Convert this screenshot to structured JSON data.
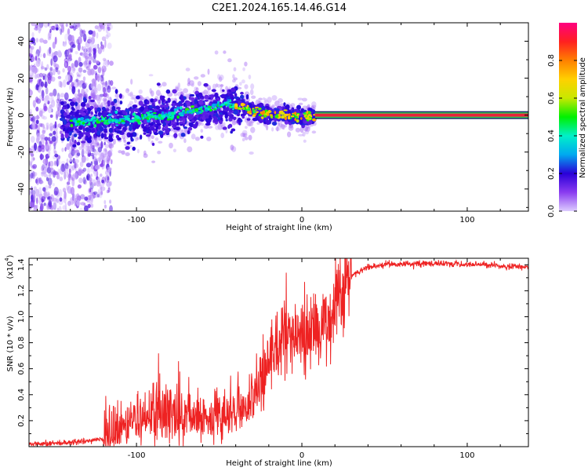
{
  "title": "C2E1.2024.165.14.46.G14",
  "colors": {
    "snr_line": "#ee2222",
    "spectrogram_track": "#e8233a",
    "colormap": [
      "#ddccff",
      "#8a3cf0",
      "#2a00d8",
      "#00a8f0",
      "#00f0c8",
      "#00f000",
      "#c8e800",
      "#ffd000",
      "#ff8000",
      "#ff2020",
      "#ff0080"
    ]
  },
  "chart_data": [
    {
      "type": "heatmap",
      "name": "spectrogram",
      "xlabel": "Height of straight line (km)",
      "ylabel": "Frequency (Hz)",
      "xlim": [
        -165,
        137
      ],
      "ylim": [
        -52,
        50
      ],
      "xticks": [
        -100,
        0,
        100
      ],
      "yticks": [
        -40,
        -20,
        0,
        20,
        40
      ],
      "grid": false,
      "colorbar": {
        "label": "Normalized spectral amplitude",
        "range": [
          0,
          1
        ],
        "ticks": [
          "0.0",
          "0.2",
          "0.4",
          "0.6",
          "0.8"
        ]
      },
      "ridge": {
        "description_points": [
          [
            -145,
            -4
          ],
          [
            -120,
            -3
          ],
          [
            -100,
            -2
          ],
          [
            -80,
            0
          ],
          [
            -60,
            3
          ],
          [
            -45,
            6
          ],
          [
            -35,
            4
          ],
          [
            -25,
            1
          ],
          [
            -10,
            0
          ],
          [
            0,
            -1
          ],
          [
            8,
            -1
          ]
        ],
        "steady_tone_from": 8,
        "steady_tone_freq": 0
      }
    },
    {
      "type": "line",
      "name": "snr",
      "xlabel": "Height of straight line (km)",
      "ylabel": "SNR (10 * v/v)",
      "y_exponent_label": "(x10",
      "y_exponent_power": "4",
      "y_exponent_close": ")",
      "xlim": [
        -165,
        137
      ],
      "ylim": [
        0,
        1.45
      ],
      "xticks": [
        -100,
        0,
        100
      ],
      "yticks": [
        0.2,
        0.4,
        0.6,
        0.8,
        1.0,
        1.2,
        1.4
      ],
      "ytick_labels": [
        "0.2",
        "0.4",
        "0.6",
        "0.8",
        "1.0",
        "1.2",
        "1.4"
      ],
      "series": [
        {
          "envelope": [
            [
              -165,
              0.02
            ],
            [
              -140,
              0.03
            ],
            [
              -120,
              0.06
            ],
            [
              -110,
              0.12
            ],
            [
              -100,
              0.18
            ],
            [
              -90,
              0.22
            ],
            [
              -80,
              0.25
            ],
            [
              -70,
              0.22
            ],
            [
              -60,
              0.2
            ],
            [
              -50,
              0.2
            ],
            [
              -40,
              0.25
            ],
            [
              -30,
              0.35
            ],
            [
              -22,
              0.55
            ],
            [
              -18,
              0.75
            ],
            [
              -10,
              0.85
            ],
            [
              0,
              0.85
            ],
            [
              10,
              0.9
            ],
            [
              18,
              1.0
            ],
            [
              25,
              1.2
            ],
            [
              30,
              1.32
            ],
            [
              40,
              1.38
            ],
            [
              50,
              1.4
            ],
            [
              80,
              1.41
            ],
            [
              110,
              1.4
            ],
            [
              137,
              1.38
            ]
          ]
        }
      ]
    }
  ]
}
